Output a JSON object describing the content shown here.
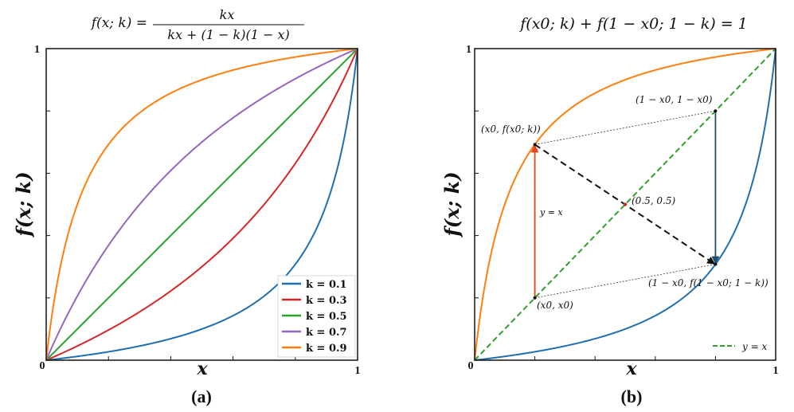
{
  "chart_data": [
    {
      "type": "line",
      "panel_label": "(a)",
      "title": "f(x;k) = kx / (kx + (1 − k)(1 − x))",
      "title_numerator": "kx",
      "title_lhs": "f(x; k) =",
      "title_denominator": "kx + (1 − k)(1 − x)",
      "xlabel": "x",
      "ylabel": "f(x; k)",
      "xlim": [
        0,
        1
      ],
      "ylim": [
        0,
        1
      ],
      "x_ticks": [
        "0",
        "1"
      ],
      "y_ticks": [
        "0",
        "1"
      ],
      "legend_position": "bottom-right",
      "series": [
        {
          "name": "k = 0.1",
          "k": 0.1,
          "color": "#1f6fb0"
        },
        {
          "name": "k = 0.3",
          "k": 0.3,
          "color": "#d62728"
        },
        {
          "name": "k = 0.5",
          "k": 0.5,
          "color": "#2ca02c"
        },
        {
          "name": "k = 0.7",
          "k": 0.7,
          "color": "#9467bd"
        },
        {
          "name": "k = 0.9",
          "k": 0.9,
          "color": "#ff7f0e"
        }
      ]
    },
    {
      "type": "line",
      "panel_label": "(b)",
      "title": "f(x0; k) + f(1 − x0; 1 − k) = 1",
      "xlabel": "x",
      "ylabel": "f(x; k)",
      "xlim": [
        0,
        1
      ],
      "ylim": [
        0,
        1
      ],
      "x_ticks": [
        "0",
        "1"
      ],
      "y_ticks": [
        "0",
        "1"
      ],
      "legend_position": "bottom-right",
      "legend": [
        {
          "name": "y = x",
          "color": "#2ca02c"
        }
      ],
      "series": [
        {
          "k": 0.9,
          "color": "#ff7f0e"
        },
        {
          "k": 0.1,
          "color": "#1f6fb0"
        }
      ],
      "x0": 0.2,
      "points": [
        {
          "label": "(x0, f(x0; k))",
          "x": 0.2,
          "y": 0.692
        },
        {
          "label": "(1 − x0, 1 − x0)",
          "x": 0.8,
          "y": 0.8
        },
        {
          "label": "(0.5, 0.5)",
          "x": 0.5,
          "y": 0.5
        },
        {
          "label": "(x0, x0)",
          "x": 0.2,
          "y": 0.2
        },
        {
          "label": "(1 − x0, f(1 − x0; 1 − k))",
          "x": 0.8,
          "y": 0.308
        }
      ],
      "arrow_label": "y = x",
      "colors": {
        "up_arrow": "#e8451f",
        "down_arrow": "#1f4e6b",
        "diagonal": "#2ca02c"
      }
    }
  ]
}
